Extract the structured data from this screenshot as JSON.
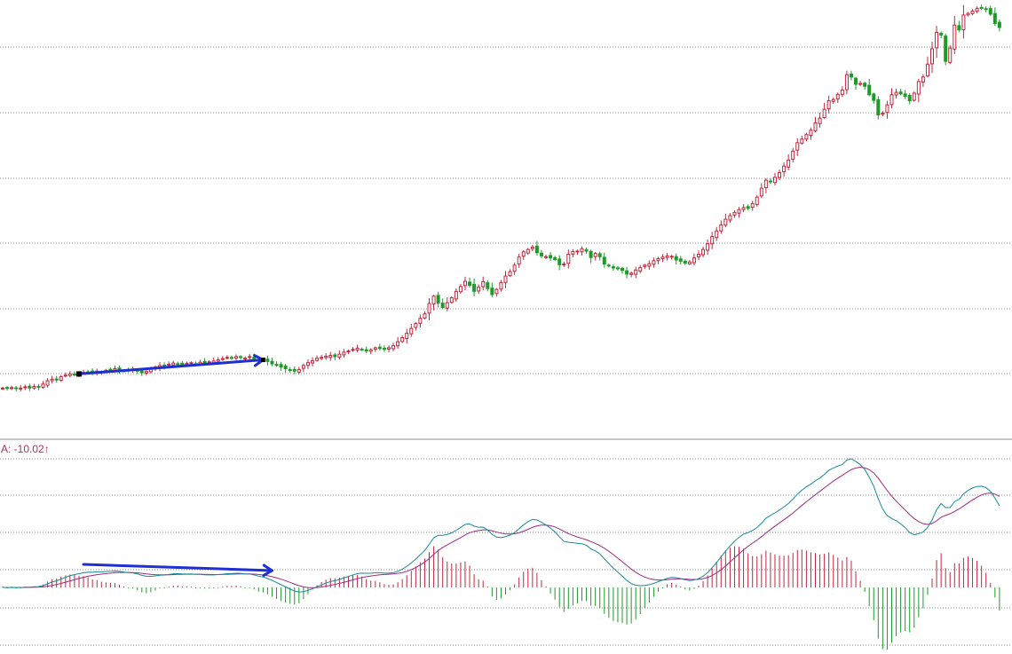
{
  "chart_data": [
    {
      "type": "candlestick",
      "title": "",
      "xlabel": "",
      "ylabel": "",
      "x_range": [
        0,
        224
      ],
      "ylim": [
        0,
        100
      ],
      "grid": true,
      "colors": {
        "up": "#c0283c",
        "down": "#1e9a28",
        "grid": "#8c8c8c",
        "arrow": "#1f2fd6"
      },
      "closes": [
        5.0,
        4.9,
        5.1,
        4.9,
        5.0,
        5.3,
        5.0,
        5.4,
        5.2,
        6.0,
        6.8,
        7.2,
        7.0,
        7.8,
        8.2,
        8.5,
        8.4,
        8.6,
        8.9,
        9.0,
        8.6,
        9.2,
        9.0,
        9.4,
        9.6,
        9.8,
        9.5,
        9.3,
        9.5,
        9.6,
        9.2,
        8.8,
        9.1,
        9.7,
        10.2,
        10.6,
        10.4,
        10.9,
        11.2,
        11.0,
        10.8,
        11.1,
        11.3,
        11.0,
        11.4,
        11.2,
        11.5,
        11.7,
        12.0,
        12.3,
        12.6,
        12.5,
        12.8,
        12.6,
        12.4,
        12.8,
        12.2,
        11.9,
        12.1,
        11.6,
        11.0,
        10.6,
        10.2,
        9.8,
        9.5,
        9.2,
        9.6,
        10.6,
        11.3,
        11.8,
        12.4,
        12.6,
        12.9,
        13.1,
        12.8,
        13.4,
        13.9,
        14.2,
        14.6,
        14.9,
        14.5,
        14.2,
        14.5,
        15.0,
        14.8,
        14.6,
        15.0,
        15.5,
        16.5,
        17.5,
        18.6,
        19.8,
        21.0,
        22.3,
        23.4,
        26.0,
        27.8,
        26.1,
        25.0,
        26.2,
        27.4,
        29.0,
        30.2,
        31.5,
        30.5,
        29.0,
        30.0,
        31.4,
        29.7,
        28.2,
        29.5,
        31.2,
        32.8,
        33.9,
        35.5,
        37.5,
        38.8,
        39.4,
        40.0,
        38.6,
        37.8,
        37.6,
        37.3,
        36.9,
        35.6,
        35.8,
        38.2,
        38.9,
        39.0,
        39.6,
        39.0,
        37.4,
        38.4,
        37.6,
        35.8,
        35.4,
        34.8,
        34.7,
        34.2,
        33.3,
        33.5,
        34.3,
        34.9,
        35.5,
        35.9,
        36.6,
        37.1,
        37.5,
        37.8,
        37.7,
        36.8,
        36.5,
        36.0,
        36.3,
        37.3,
        38.2,
        39.4,
        40.8,
        42.6,
        44.0,
        45.5,
        46.9,
        47.8,
        48.6,
        49.3,
        49.8,
        49.6,
        50.8,
        52.4,
        54.6,
        56.6,
        56.2,
        57.3,
        58.5,
        60.1,
        61.6,
        63.8,
        65.9,
        66.8,
        67.9,
        69.0,
        70.8,
        72.0,
        74.2,
        76.3,
        76.6,
        77.9,
        79.0,
        82.8,
        82.2,
        80.4,
        80.6,
        79.9,
        77.8,
        76.4,
        72.8,
        73.2,
        75.3,
        77.8,
        78.4,
        78.0,
        77.4,
        76.3,
        78.2,
        81.1,
        82.2,
        85.4,
        89.2,
        93.3,
        92.6,
        86.1,
        89.4,
        95.1,
        93.9,
        97.6,
        98.0,
        98.6,
        99.2,
        99.4,
        99.0,
        97.8,
        95.5,
        94.5
      ],
      "annotations": [
        {
          "type": "arrow",
          "from": [
            17,
            8.5
          ],
          "to": [
            58,
            12.0
          ]
        }
      ]
    },
    {
      "type": "bar",
      "title": "",
      "indicator_readout": "A: -10.02↑",
      "x_range": [
        0,
        224
      ],
      "ylim": [
        -100,
        100
      ],
      "grid": true,
      "colors": {
        "pos_bar": "#c0283c",
        "neg_bar": "#1e9a28",
        "dif": "#19899a",
        "dea": "#a0287f",
        "grid": "#8c8c8c",
        "readout": "#b0306a"
      },
      "annotations": [
        {
          "type": "arrow",
          "from": [
            18,
            14.0
          ],
          "to": [
            60,
            10.0
          ]
        }
      ]
    }
  ]
}
